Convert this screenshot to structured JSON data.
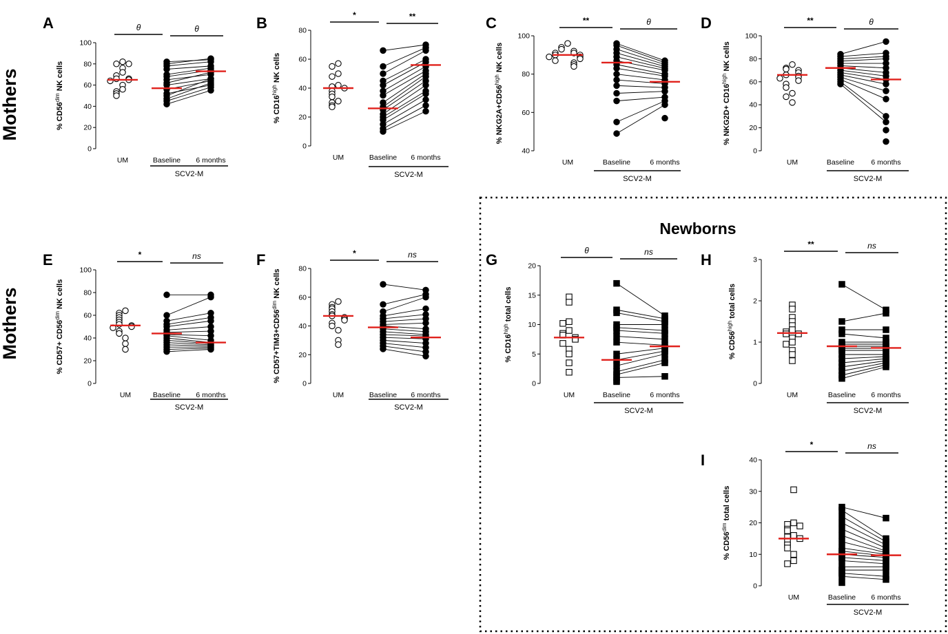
{
  "row_labels": [
    "Mothers",
    "Mothers"
  ],
  "newborns_title": "Newborns",
  "colors": {
    "median": "#e0201b",
    "line": "#000000",
    "frame": "#000000"
  },
  "chart_data": [
    {
      "type": "scatter",
      "panel": "A",
      "title": "",
      "ylabel": "% CD56dim NK cells",
      "ylabel_parts": [
        {
          "t": "% CD56"
        },
        {
          "t": "dim",
          "sup": true
        },
        {
          "t": " NK cells"
        }
      ],
      "ylim": [
        0,
        100
      ],
      "yticks": [
        0,
        20,
        40,
        60,
        80,
        100
      ],
      "categories": [
        "UM",
        "Baseline",
        "6 months"
      ],
      "group_label": "SCV2-M",
      "marker": "circle",
      "um_open": true,
      "um": [
        82,
        80,
        80,
        76,
        72,
        69,
        66,
        66,
        65,
        64,
        60,
        56,
        54,
        52,
        50
      ],
      "baseline": [
        82,
        80,
        78,
        75,
        70,
        68,
        65,
        62,
        60,
        56,
        52,
        50,
        47,
        45,
        42
      ],
      "six_months": [
        84,
        85,
        82,
        78,
        76,
        74,
        70,
        72,
        66,
        64,
        60,
        66,
        62,
        58,
        55
      ],
      "medians": [
        65,
        57,
        73
      ],
      "sig": [
        {
          "label": "θ",
          "from": 0,
          "to": 1
        },
        {
          "label": "θ",
          "from": 1,
          "to": 2
        }
      ]
    },
    {
      "type": "scatter",
      "panel": "B",
      "title": "",
      "ylabel": "% CD16high NK cells",
      "ylabel_parts": [
        {
          "t": "% CD16"
        },
        {
          "t": "high",
          "sup": true
        },
        {
          "t": " NK cells"
        }
      ],
      "ylim": [
        0,
        80
      ],
      "yticks": [
        0,
        20,
        40,
        60,
        80
      ],
      "categories": [
        "UM",
        "Baseline",
        "6 months"
      ],
      "group_label": "SCV2-M",
      "marker": "circle",
      "um_open": true,
      "um": [
        57,
        55,
        50,
        48,
        42,
        41,
        40,
        38,
        36,
        34,
        31,
        30,
        28,
        27
      ],
      "baseline": [
        66,
        55,
        50,
        45,
        42,
        38,
        35,
        30,
        27,
        25,
        22,
        20,
        18,
        15,
        12,
        10
      ],
      "six_months": [
        70,
        68,
        66,
        60,
        58,
        55,
        52,
        50,
        48,
        45,
        42,
        38,
        36,
        32,
        28,
        24
      ],
      "medians": [
        40,
        26,
        56
      ],
      "sig": [
        {
          "label": "*",
          "from": 0,
          "to": 1
        },
        {
          "label": "**",
          "from": 1,
          "to": 2
        }
      ]
    },
    {
      "type": "scatter",
      "panel": "C",
      "title": "",
      "ylabel": "% NKG2A+CD56high NK cells",
      "ylabel_parts": [
        {
          "t": "% NKG2A+CD56"
        },
        {
          "t": "high",
          "sup": true
        },
        {
          "t": " NK cells"
        }
      ],
      "ylim": [
        40,
        100
      ],
      "yticks": [
        40,
        60,
        80,
        100
      ],
      "categories": [
        "UM",
        "Baseline",
        "6 months"
      ],
      "group_label": "SCV2-M",
      "marker": "circle",
      "um_open": true,
      "um": [
        96,
        94,
        93,
        92,
        91,
        91,
        90,
        90,
        89,
        89,
        88,
        87,
        86,
        85,
        84
      ],
      "baseline": [
        96,
        95,
        93,
        91,
        89,
        87,
        85,
        83,
        80,
        77,
        74,
        70,
        66,
        55,
        49
      ],
      "six_months": [
        87,
        86,
        85,
        84,
        83,
        82,
        80,
        79,
        77,
        75,
        73,
        71,
        68,
        66,
        64,
        57
      ],
      "medians": [
        90,
        86,
        76
      ],
      "sig": [
        {
          "label": "**",
          "from": 0,
          "to": 1
        },
        {
          "label": "θ",
          "from": 1,
          "to": 2
        }
      ]
    },
    {
      "type": "scatter",
      "panel": "D",
      "title": "",
      "ylabel": "% NKG2D+ CD16high NK cells",
      "ylabel_parts": [
        {
          "t": "% NKG2D+ CD16"
        },
        {
          "t": "high",
          "sup": true
        },
        {
          "t": " NK cells"
        }
      ],
      "ylim": [
        0,
        100
      ],
      "yticks": [
        0,
        20,
        40,
        60,
        80,
        100
      ],
      "categories": [
        "UM",
        "Baseline",
        "6 months"
      ],
      "group_label": "SCV2-M",
      "marker": "circle",
      "um_open": true,
      "um": [
        75,
        72,
        71,
        70,
        68,
        66,
        65,
        64,
        63,
        61,
        58,
        55,
        50,
        47,
        42
      ],
      "baseline": [
        84,
        82,
        80,
        78,
        76,
        74,
        72,
        70,
        68,
        66,
        64,
        62,
        60,
        58
      ],
      "six_months": [
        95,
        85,
        82,
        80,
        76,
        72,
        68,
        65,
        62,
        58,
        52,
        45,
        30,
        25,
        18,
        8
      ],
      "medians": [
        66,
        72,
        62
      ],
      "sig": [
        {
          "label": "**",
          "from": 0,
          "to": 1
        },
        {
          "label": "θ",
          "from": 1,
          "to": 2
        }
      ]
    },
    {
      "type": "scatter",
      "panel": "E",
      "title": "",
      "ylabel": "% CD57+ CD56dim NK cells",
      "ylabel_parts": [
        {
          "t": "% CD57+ CD56"
        },
        {
          "t": "dim",
          "sup": true
        },
        {
          "t": " NK cells"
        }
      ],
      "ylim": [
        0,
        100
      ],
      "yticks": [
        0,
        20,
        40,
        60,
        80,
        100
      ],
      "categories": [
        "UM",
        "Baseline",
        "6 months"
      ],
      "group_label": "SCV2-M",
      "marker": "circle",
      "um_open": true,
      "um": [
        64,
        62,
        60,
        58,
        56,
        54,
        52,
        51,
        50,
        49,
        46,
        44,
        40,
        35,
        30
      ],
      "baseline": [
        78,
        60,
        55,
        52,
        50,
        47,
        45,
        43,
        42,
        40,
        38,
        36,
        34,
        32,
        30,
        28
      ],
      "six_months": [
        78,
        76,
        62,
        58,
        55,
        50,
        46,
        42,
        38,
        36,
        35,
        34,
        33,
        32,
        31,
        30
      ],
      "medians": [
        51,
        44,
        36
      ],
      "sig": [
        {
          "label": "*",
          "from": 0,
          "to": 1
        },
        {
          "label": "ns",
          "from": 1,
          "to": 2
        }
      ]
    },
    {
      "type": "scatter",
      "panel": "F",
      "title": "",
      "ylabel": "% CD57+TIM3+CD56dim NK cells",
      "ylabel_parts": [
        {
          "t": "% CD57+TIM3+CD56"
        },
        {
          "t": "dim",
          "sup": true
        },
        {
          "t": " NK cells"
        }
      ],
      "ylim": [
        0,
        80
      ],
      "yticks": [
        0,
        20,
        40,
        60,
        80
      ],
      "categories": [
        "UM",
        "Baseline",
        "6 months"
      ],
      "group_label": "SCV2-M",
      "marker": "circle",
      "um_open": true,
      "um": [
        57,
        55,
        53,
        52,
        50,
        48,
        47,
        46,
        45,
        44,
        42,
        40,
        37,
        30,
        27
      ],
      "baseline": [
        69,
        55,
        50,
        47,
        45,
        43,
        41,
        40,
        38,
        36,
        34,
        32,
        30,
        28,
        26,
        24
      ],
      "six_months": [
        65,
        62,
        60,
        52,
        48,
        45,
        42,
        38,
        36,
        34,
        33,
        31,
        28,
        25,
        22,
        19
      ],
      "medians": [
        47,
        39,
        32
      ],
      "sig": [
        {
          "label": "*",
          "from": 0,
          "to": 1
        },
        {
          "label": "ns",
          "from": 1,
          "to": 2
        }
      ]
    },
    {
      "type": "scatter",
      "panel": "G",
      "title": "",
      "ylabel": "% CD16high total cells",
      "ylabel_parts": [
        {
          "t": "% CD16"
        },
        {
          "t": "high",
          "sup": true
        },
        {
          "t": " total cells"
        }
      ],
      "ylim": [
        0,
        20
      ],
      "yticks": [
        0,
        5,
        10,
        15,
        20
      ],
      "categories": [
        "UM",
        "Baseline",
        "6 months"
      ],
      "group_label": "SCV2-M",
      "marker": "square",
      "um_open": true,
      "um": [
        14.7,
        13.8,
        10.5,
        10.2,
        9.0,
        8.5,
        8.2,
        7.8,
        7.5,
        6.8,
        5.8,
        5.0,
        3.5,
        1.9
      ],
      "baseline": [
        17,
        12.5,
        12,
        10,
        9.5,
        9.0,
        8.0,
        7.0,
        5.0,
        4.0,
        3.0,
        2.0,
        1.5,
        1.0,
        0.5,
        0.3
      ],
      "six_months": [
        11.5,
        11.0,
        10.5,
        10.0,
        9.0,
        8.5,
        7.5,
        6.5,
        6.0,
        5.5,
        5.0,
        4.0,
        3.5,
        1.2
      ],
      "medians": [
        7.8,
        4.0,
        6.3
      ],
      "sig": [
        {
          "label": "θ",
          "from": 0,
          "to": 1
        },
        {
          "label": "ns",
          "from": 1,
          "to": 2
        }
      ]
    },
    {
      "type": "scatter",
      "panel": "H",
      "title": "",
      "ylabel": "% CD56high total cells",
      "ylabel_parts": [
        {
          "t": "% CD56"
        },
        {
          "t": "high",
          "sup": true
        },
        {
          "t": " total cells"
        }
      ],
      "ylim": [
        0,
        3
      ],
      "yticks": [
        0,
        1,
        2,
        3
      ],
      "categories": [
        "UM",
        "Baseline",
        "6 months"
      ],
      "group_label": "SCV2-M",
      "marker": "square",
      "um_open": true,
      "um": [
        1.9,
        1.8,
        1.6,
        1.5,
        1.4,
        1.3,
        1.25,
        1.2,
        1.2,
        1.1,
        1.0,
        0.95,
        0.8,
        0.7,
        0.55
      ],
      "baseline": [
        2.4,
        1.5,
        1.3,
        1.2,
        1.0,
        0.95,
        0.9,
        0.85,
        0.8,
        0.7,
        0.6,
        0.5,
        0.4,
        0.3,
        0.2,
        0.12
      ],
      "six_months": [
        1.78,
        1.7,
        1.3,
        1.1,
        1.0,
        0.95,
        0.9,
        0.85,
        0.8,
        0.7,
        0.65,
        0.6,
        0.55,
        0.5,
        0.45,
        0.4
      ],
      "medians": [
        1.22,
        0.9,
        0.86
      ],
      "sig": [
        {
          "label": "**",
          "from": 0,
          "to": 1
        },
        {
          "label": "ns",
          "from": 1,
          "to": 2
        }
      ]
    },
    {
      "type": "scatter",
      "panel": "I",
      "title": "",
      "ylabel": "% CD56dim total cells",
      "ylabel_parts": [
        {
          "t": "% CD56"
        },
        {
          "t": "dim",
          "sup": true
        },
        {
          "t": " total cells"
        }
      ],
      "ylim": [
        0,
        40
      ],
      "yticks": [
        0,
        10,
        20,
        30,
        40
      ],
      "categories": [
        "UM",
        "Baseline",
        "6 months"
      ],
      "group_label": "SCV2-M",
      "marker": "square",
      "um_open": true,
      "um": [
        30.5,
        20,
        19.5,
        19,
        18,
        17.5,
        16,
        15.5,
        15,
        14,
        13,
        12,
        10,
        8,
        7
      ],
      "baseline": [
        25,
        24,
        22,
        20,
        18,
        16,
        14,
        12,
        11,
        10,
        9,
        8,
        6,
        5,
        4,
        3,
        1
      ],
      "six_months": [
        21.5,
        15,
        14,
        13,
        12,
        11,
        10.5,
        10,
        9.5,
        9,
        8,
        7,
        6,
        5,
        3,
        2
      ],
      "medians": [
        15,
        10,
        9.7
      ],
      "sig": [
        {
          "label": "*",
          "from": 0,
          "to": 1
        },
        {
          "label": "ns",
          "from": 1,
          "to": 2
        }
      ]
    }
  ]
}
